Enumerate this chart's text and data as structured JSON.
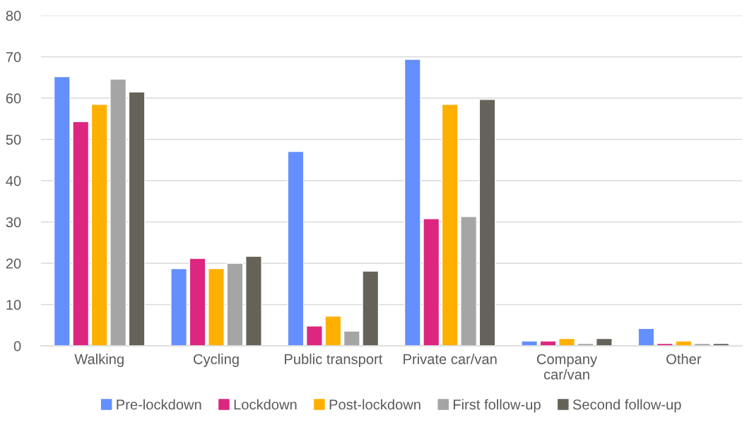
{
  "chart_data": {
    "type": "bar",
    "categories": [
      "Walking",
      "Cycling",
      "Public transport",
      "Private car/van",
      "Company\ncar/van",
      "Other"
    ],
    "series": [
      {
        "name": "Pre-lockdown",
        "color": "#648ffe",
        "values": [
          65.2,
          18.7,
          47.1,
          69.4,
          1.2,
          4.2
        ]
      },
      {
        "name": "Lockdown",
        "color": "#dc267f",
        "values": [
          54.3,
          21.2,
          4.8,
          30.8,
          1.2,
          0.6
        ]
      },
      {
        "name": "Post-lockdown",
        "color": "#feb000",
        "values": [
          58.5,
          18.7,
          7.2,
          58.5,
          1.8,
          1.2
        ]
      },
      {
        "name": "First follow-up",
        "color": "#a5a5a5",
        "values": [
          64.6,
          20.0,
          3.6,
          31.3,
          0.6,
          0.6
        ]
      },
      {
        "name": "Second follow-up",
        "color": "#656359",
        "values": [
          61.5,
          21.7,
          18.1,
          59.7,
          1.8,
          0.6
        ]
      }
    ],
    "ylim": [
      0,
      80
    ],
    "yticks": [
      0,
      10,
      20,
      30,
      40,
      50,
      60,
      70,
      80
    ],
    "grid": "y",
    "legend": "bottom"
  }
}
